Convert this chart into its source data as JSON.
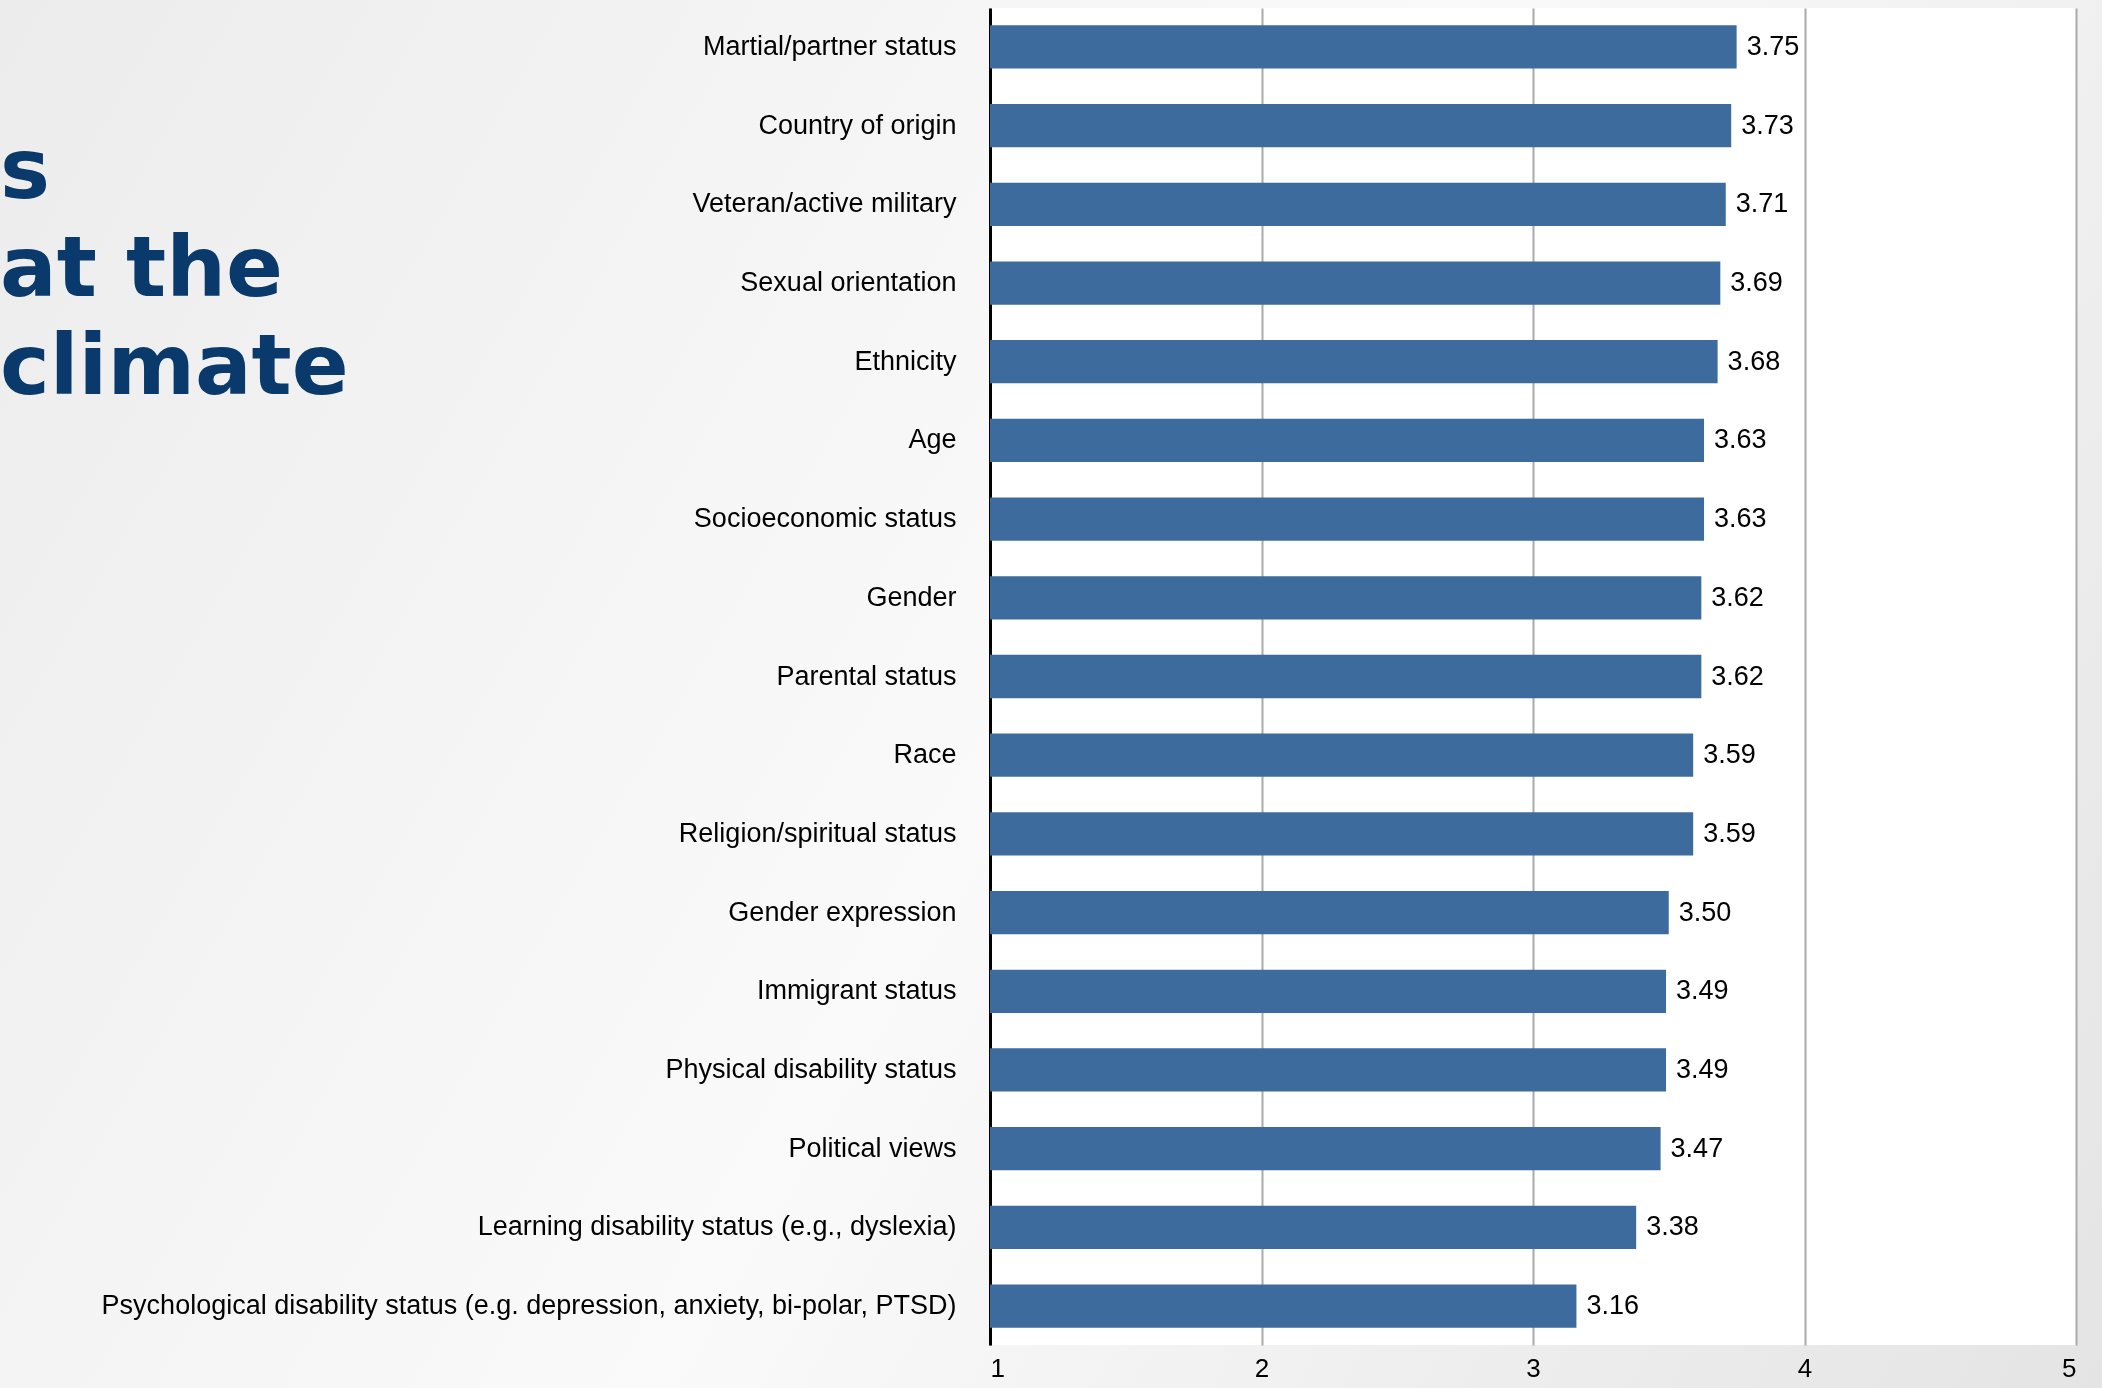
{
  "chart_data": {
    "type": "bar",
    "orientation": "horizontal",
    "categories": [
      "Martial/partner status",
      "Country of origin",
      "Veteran/active military",
      "Sexual orientation",
      "Ethnicity",
      "Age",
      "Socioeconomic status",
      "Gender",
      "Parental status",
      "Race",
      "Religion/spiritual status",
      "Gender expression",
      "Immigrant status",
      "Physical disability status",
      "Political views",
      "Learning disability status (e.g., dyslexia)",
      "Psychological disability status (e.g. depression, anxiety, bi-polar, PTSD)"
    ],
    "values": [
      3.75,
      3.73,
      3.71,
      3.69,
      3.68,
      3.63,
      3.63,
      3.62,
      3.62,
      3.59,
      3.59,
      3.5,
      3.49,
      3.49,
      3.47,
      3.38,
      3.16
    ],
    "color": "#3d6b9e",
    "xlim": [
      1,
      5
    ],
    "xticks": [
      1,
      2,
      3,
      4,
      5
    ],
    "grid": "x",
    "value_labels": [
      "3.75",
      "3.73",
      "3.71",
      "3.69",
      "3.68",
      "3.63",
      "3.63",
      "3.62",
      "3.62",
      "3.59",
      "3.59",
      "3.50",
      "3.49",
      "3.49",
      "3.47",
      "3.38",
      "3.16"
    ],
    "annotations": [
      "s",
      "at the",
      "climate"
    ]
  }
}
